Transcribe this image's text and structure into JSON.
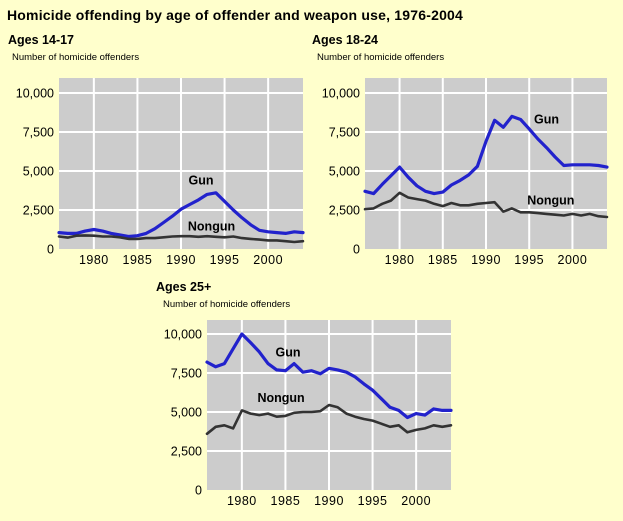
{
  "page": {
    "title": "Homicide offending by age of offender and weapon use, 1976-2004",
    "background_color": "#FFFFCC"
  },
  "colors": {
    "gun_line": "#2222CC",
    "nongun_line": "#333333",
    "plot_background": "#CCCCCC",
    "gridline": "#FFFFFF",
    "text": "#000000"
  },
  "chart_data": [
    {
      "id": "ages-14-17",
      "type": "line",
      "title": "Ages 14-17",
      "ylabel": "Number of homicide offenders",
      "xlabel": "",
      "grid": true,
      "legend": "inline annotations",
      "ylim": [
        0,
        10000
      ],
      "yticks": [
        0,
        2500,
        5000,
        7500,
        10000
      ],
      "ytick_labels": [
        "0",
        "2,500",
        "5,000",
        "7,500",
        "10,000"
      ],
      "xticks": [
        1980,
        1985,
        1990,
        1995,
        2000
      ],
      "x": [
        1976,
        1977,
        1978,
        1979,
        1980,
        1981,
        1982,
        1983,
        1984,
        1985,
        1986,
        1987,
        1988,
        1989,
        1990,
        1991,
        1992,
        1993,
        1994,
        1995,
        1996,
        1997,
        1998,
        1999,
        2000,
        2001,
        2002,
        2003,
        2004
      ],
      "series": [
        {
          "name": "Gun",
          "color": "#2222CC",
          "values": [
            1050,
            1000,
            1000,
            1150,
            1250,
            1150,
            1000,
            900,
            800,
            850,
            1000,
            1300,
            1700,
            2100,
            2550,
            2850,
            3150,
            3500,
            3600,
            3050,
            2500,
            2000,
            1550,
            1200,
            1100,
            1050,
            1000,
            1100,
            1050
          ]
        },
        {
          "name": "Nongun",
          "color": "#333333",
          "values": [
            800,
            730,
            850,
            870,
            850,
            800,
            800,
            750,
            650,
            650,
            700,
            700,
            750,
            800,
            820,
            820,
            780,
            820,
            780,
            750,
            800,
            700,
            650,
            600,
            550,
            550,
            500,
            450,
            500
          ]
        }
      ],
      "annotations": [
        {
          "text": "Gun",
          "x": 1992.3,
          "y": 4400
        },
        {
          "text": "Nongun",
          "x": 1993.5,
          "y": 1450
        }
      ]
    },
    {
      "id": "ages-18-24",
      "type": "line",
      "title": "Ages 18-24",
      "ylabel": "Number of homicide offenders",
      "xlabel": "",
      "grid": true,
      "legend": "inline annotations",
      "ylim": [
        0,
        10000
      ],
      "yticks": [
        0,
        2500,
        5000,
        7500,
        10000
      ],
      "ytick_labels": [
        "0",
        "2,500",
        "5,000",
        "7,500",
        "10,000"
      ],
      "xticks": [
        1980,
        1985,
        1990,
        1995,
        2000
      ],
      "x": [
        1976,
        1977,
        1978,
        1979,
        1980,
        1981,
        1982,
        1983,
        1984,
        1985,
        1986,
        1987,
        1988,
        1989,
        1990,
        1991,
        1992,
        1993,
        1994,
        1995,
        1996,
        1997,
        1998,
        1999,
        2000,
        2001,
        2002,
        2003,
        2004
      ],
      "series": [
        {
          "name": "Gun",
          "color": "#2222CC",
          "values": [
            3700,
            3550,
            4150,
            4700,
            5250,
            4600,
            4050,
            3700,
            3550,
            3650,
            4100,
            4400,
            4750,
            5300,
            6900,
            8250,
            7800,
            8500,
            8300,
            7700,
            7050,
            6500,
            5900,
            5350,
            5400,
            5400,
            5400,
            5350,
            5250
          ]
        },
        {
          "name": "Nongun",
          "color": "#333333",
          "values": [
            2550,
            2600,
            2900,
            3100,
            3600,
            3300,
            3200,
            3100,
            2900,
            2750,
            2950,
            2800,
            2800,
            2900,
            2950,
            3000,
            2400,
            2600,
            2350,
            2350,
            2300,
            2250,
            2200,
            2150,
            2250,
            2150,
            2250,
            2100,
            2050
          ]
        }
      ],
      "annotations": [
        {
          "text": "Gun",
          "x": 1997.0,
          "y": 8300
        },
        {
          "text": "Nongun",
          "x": 1997.5,
          "y": 3100
        }
      ]
    },
    {
      "id": "ages-25-plus",
      "type": "line",
      "title": "Ages 25+",
      "ylabel": "Number of homicide offenders",
      "xlabel": "",
      "grid": true,
      "legend": "inline annotations",
      "ylim": [
        0,
        10000
      ],
      "yticks": [
        0,
        2500,
        5000,
        7500,
        10000
      ],
      "ytick_labels": [
        "0",
        "2,500",
        "5,000",
        "7,500",
        "10,000"
      ],
      "xticks": [
        1980,
        1985,
        1990,
        1995,
        2000
      ],
      "x": [
        1976,
        1977,
        1978,
        1979,
        1980,
        1981,
        1982,
        1983,
        1984,
        1985,
        1986,
        1987,
        1988,
        1989,
        1990,
        1991,
        1992,
        1993,
        1994,
        1995,
        1996,
        1997,
        1998,
        1999,
        2000,
        2001,
        2002,
        2003,
        2004
      ],
      "series": [
        {
          "name": "Gun",
          "color": "#2222CC",
          "values": [
            8200,
            7900,
            8100,
            9050,
            10000,
            9450,
            8850,
            8100,
            7700,
            7650,
            8100,
            7550,
            7650,
            7450,
            7800,
            7700,
            7550,
            7250,
            6800,
            6400,
            5850,
            5300,
            5100,
            4650,
            4900,
            4800,
            5200,
            5100,
            5100
          ]
        },
        {
          "name": "Nongun",
          "color": "#333333",
          "values": [
            3600,
            4050,
            4150,
            3950,
            5100,
            4900,
            4800,
            4900,
            4700,
            4750,
            4950,
            5000,
            5000,
            5050,
            5450,
            5300,
            4900,
            4700,
            4550,
            4450,
            4250,
            4050,
            4150,
            3700,
            3850,
            3950,
            4150,
            4050,
            4150
          ]
        }
      ],
      "annotations": [
        {
          "text": "Gun",
          "x": 1985.3,
          "y": 8800
        },
        {
          "text": "Nongun",
          "x": 1984.5,
          "y": 5900
        }
      ]
    }
  ]
}
